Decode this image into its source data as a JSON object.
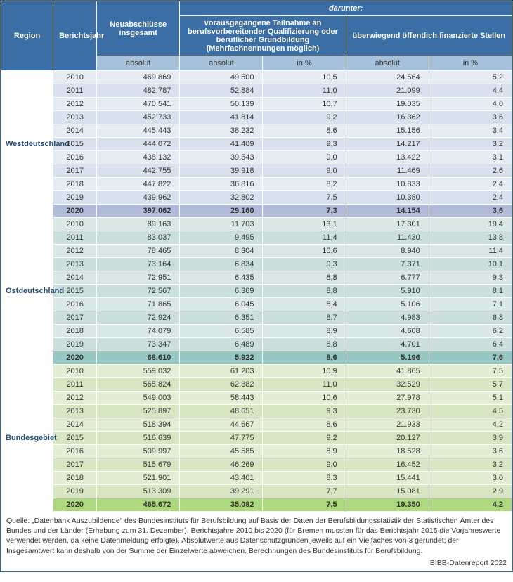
{
  "header": {
    "region": "Region",
    "year": "Berichtsjahr",
    "total": "Neuabschlüsse insgesamt",
    "darunter": "darunter:",
    "prev": "vorausgegangene Teilnahme an berufsvorbereitender Qualifizierung oder beruflicher Grundbildung (Mehrfachnennungen möglich)",
    "public": "überwiegend öffentlich finanzierte Stellen",
    "abs": "absolut",
    "pct": "in %"
  },
  "regions": [
    {
      "name": "Westdeutschland",
      "row_class": "west-row",
      "alt_class": "west-row-alt",
      "hl_class": "west-hl",
      "rows": [
        {
          "year": "2010",
          "total": "469.869",
          "prev_abs": "49.500",
          "prev_pct": "10,5",
          "pub_abs": "24.564",
          "pub_pct": "5,2"
        },
        {
          "year": "2011",
          "total": "482.787",
          "prev_abs": "52.884",
          "prev_pct": "11,0",
          "pub_abs": "21.099",
          "pub_pct": "4,4"
        },
        {
          "year": "2012",
          "total": "470.541",
          "prev_abs": "50.139",
          "prev_pct": "10,7",
          "pub_abs": "19.035",
          "pub_pct": "4,0"
        },
        {
          "year": "2013",
          "total": "452.733",
          "prev_abs": "41.814",
          "prev_pct": "9,2",
          "pub_abs": "16.362",
          "pub_pct": "3,6"
        },
        {
          "year": "2014",
          "total": "445.443",
          "prev_abs": "38.232",
          "prev_pct": "8,6",
          "pub_abs": "15.156",
          "pub_pct": "3,4"
        },
        {
          "year": "2015",
          "total": "444.072",
          "prev_abs": "41.409",
          "prev_pct": "9,3",
          "pub_abs": "14.217",
          "pub_pct": "3,2"
        },
        {
          "year": "2016",
          "total": "438.132",
          "prev_abs": "39.543",
          "prev_pct": "9,0",
          "pub_abs": "13.422",
          "pub_pct": "3,1"
        },
        {
          "year": "2017",
          "total": "442.755",
          "prev_abs": "39.918",
          "prev_pct": "9,0",
          "pub_abs": "11.469",
          "pub_pct": "2,6"
        },
        {
          "year": "2018",
          "total": "447.822",
          "prev_abs": "36.816",
          "prev_pct": "8,2",
          "pub_abs": "10.833",
          "pub_pct": "2,4"
        },
        {
          "year": "2019",
          "total": "439.962",
          "prev_abs": "32.802",
          "prev_pct": "7,5",
          "pub_abs": "10.380",
          "pub_pct": "2,4"
        },
        {
          "year": "2020",
          "total": "397.062",
          "prev_abs": "29.160",
          "prev_pct": "7,3",
          "pub_abs": "14.154",
          "pub_pct": "3,6",
          "highlight": true
        }
      ]
    },
    {
      "name": "Ostdeutschland",
      "row_class": "ost-row",
      "alt_class": "ost-row-alt",
      "hl_class": "ost-hl",
      "rows": [
        {
          "year": "2010",
          "total": "89.163",
          "prev_abs": "11.703",
          "prev_pct": "13,1",
          "pub_abs": "17.301",
          "pub_pct": "19,4"
        },
        {
          "year": "2011",
          "total": "83.037",
          "prev_abs": "9.495",
          "prev_pct": "11,4",
          "pub_abs": "11.430",
          "pub_pct": "13,8"
        },
        {
          "year": "2012",
          "total": "78.465",
          "prev_abs": "8.304",
          "prev_pct": "10,6",
          "pub_abs": "8.940",
          "pub_pct": "11,4"
        },
        {
          "year": "2013",
          "total": "73.164",
          "prev_abs": "6.834",
          "prev_pct": "9,3",
          "pub_abs": "7.371",
          "pub_pct": "10,1"
        },
        {
          "year": "2014",
          "total": "72.951",
          "prev_abs": "6.435",
          "prev_pct": "8,8",
          "pub_abs": "6.777",
          "pub_pct": "9,3"
        },
        {
          "year": "2015",
          "total": "72.567",
          "prev_abs": "6.369",
          "prev_pct": "8,8",
          "pub_abs": "5.910",
          "pub_pct": "8,1"
        },
        {
          "year": "2016",
          "total": "71.865",
          "prev_abs": "6.045",
          "prev_pct": "8,4",
          "pub_abs": "5.106",
          "pub_pct": "7,1"
        },
        {
          "year": "2017",
          "total": "72.924",
          "prev_abs": "6.351",
          "prev_pct": "8,7",
          "pub_abs": "4.983",
          "pub_pct": "6,8"
        },
        {
          "year": "2018",
          "total": "74.079",
          "prev_abs": "6.585",
          "prev_pct": "8,9",
          "pub_abs": "4.608",
          "pub_pct": "6,2"
        },
        {
          "year": "2019",
          "total": "73.347",
          "prev_abs": "6.489",
          "prev_pct": "8,8",
          "pub_abs": "4.701",
          "pub_pct": "6,4"
        },
        {
          "year": "2020",
          "total": "68.610",
          "prev_abs": "5.922",
          "prev_pct": "8,6",
          "pub_abs": "5.196",
          "pub_pct": "7,6",
          "highlight": true
        }
      ]
    },
    {
      "name": "Bundesgebiet",
      "row_class": "bund-row",
      "alt_class": "bund-row-alt",
      "hl_class": "bund-hl",
      "rows": [
        {
          "year": "2010",
          "total": "559.032",
          "prev_abs": "61.203",
          "prev_pct": "10,9",
          "pub_abs": "41.865",
          "pub_pct": "7,5"
        },
        {
          "year": "2011",
          "total": "565.824",
          "prev_abs": "62.382",
          "prev_pct": "11,0",
          "pub_abs": "32.529",
          "pub_pct": "5,7"
        },
        {
          "year": "2012",
          "total": "549.003",
          "prev_abs": "58.443",
          "prev_pct": "10,6",
          "pub_abs": "27.978",
          "pub_pct": "5,1"
        },
        {
          "year": "2013",
          "total": "525.897",
          "prev_abs": "48.651",
          "prev_pct": "9,3",
          "pub_abs": "23.730",
          "pub_pct": "4,5"
        },
        {
          "year": "2014",
          "total": "518.394",
          "prev_abs": "44.667",
          "prev_pct": "8,6",
          "pub_abs": "21.933",
          "pub_pct": "4,2"
        },
        {
          "year": "2015",
          "total": "516.639",
          "prev_abs": "47.775",
          "prev_pct": "9,2",
          "pub_abs": "20.127",
          "pub_pct": "3,9"
        },
        {
          "year": "2016",
          "total": "509.997",
          "prev_abs": "45.585",
          "prev_pct": "8,9",
          "pub_abs": "18.528",
          "pub_pct": "3,6"
        },
        {
          "year": "2017",
          "total": "515.679",
          "prev_abs": "46.269",
          "prev_pct": "9,0",
          "pub_abs": "16.452",
          "pub_pct": "3,2"
        },
        {
          "year": "2018",
          "total": "521.901",
          "prev_abs": "43.401",
          "prev_pct": "8,3",
          "pub_abs": "15.441",
          "pub_pct": "3,0"
        },
        {
          "year": "2019",
          "total": "513.309",
          "prev_abs": "39.291",
          "prev_pct": "7,7",
          "pub_abs": "15.081",
          "pub_pct": "2,9"
        },
        {
          "year": "2020",
          "total": "465.672",
          "prev_abs": "35.082",
          "prev_pct": "7,5",
          "pub_abs": "19.350",
          "pub_pct": "4,2",
          "highlight": true
        }
      ]
    }
  ],
  "footnote": "Quelle: „Datenbank Auszubildende“ des Bundesinstituts für Berufsbildung auf Basis der Daten der Berufsbildungsstatistik der Statistischen Ämter des Bundes und der Länder (Erhebung zum 31. Dezember), Berichtsjahre 2010 bis 2020 (für Bremen mussten für das Berichtsjahr 2015 die Vorjahreswerte verwendet werden, da keine Datenmeldung erfolgte). Absolutwerte aus Datenschutzgründen jeweils auf ein Vielfaches von 3 gerundet; der Insgesamtwert kann deshalb von der Summe der Einzelwerte abweichen. Berechnungen des Bundesinstituts für Berufsbildung.",
  "credit": "BIBB-Datenreport 2022"
}
